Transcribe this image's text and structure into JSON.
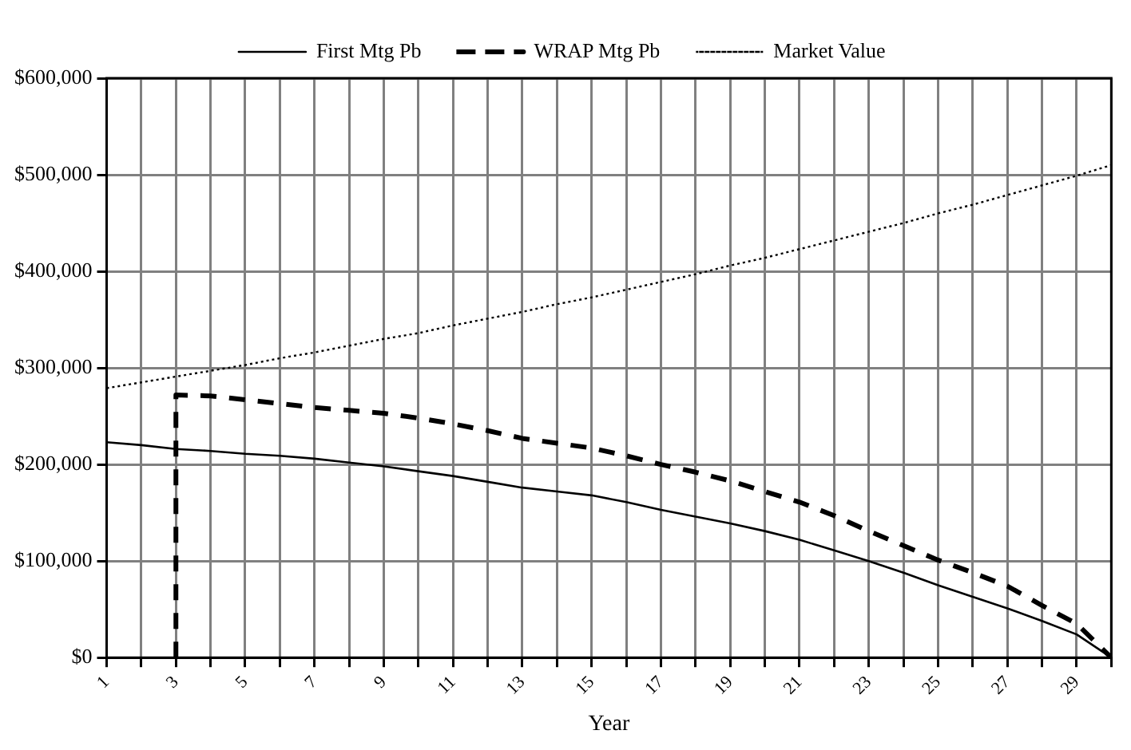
{
  "chart_data": {
    "type": "line",
    "xlabel": "Year",
    "legend": "top",
    "grid": true,
    "marker": "none",
    "xlim": [
      1,
      30
    ],
    "xticks": [
      1,
      {
        "value": 2,
        "label": null
      },
      3,
      {
        "value": 4,
        "label": null
      },
      5,
      {
        "value": 6,
        "label": null
      },
      7,
      {
        "value": 8,
        "label": null
      },
      9,
      {
        "value": 10,
        "label": null
      },
      11,
      {
        "value": 12,
        "label": null
      },
      13,
      {
        "value": 14,
        "label": null
      },
      15,
      {
        "value": 16,
        "label": null
      },
      17,
      {
        "value": 18,
        "label": null
      },
      19,
      {
        "value": 20,
        "label": null
      },
      21,
      {
        "value": 22,
        "label": null
      },
      23,
      {
        "value": 24,
        "label": null
      },
      25,
      {
        "value": 26,
        "label": null
      },
      27,
      {
        "value": 28,
        "label": null
      },
      29,
      {
        "value": 30,
        "label": null
      }
    ],
    "ylim": [
      0,
      600000
    ],
    "yticks": [
      {
        "value": 0,
        "label": "$0"
      },
      {
        "value": 100000,
        "label": "$100,000"
      },
      {
        "value": 200000,
        "label": "$200,000"
      },
      {
        "value": 300000,
        "label": "$300,000"
      },
      {
        "value": 400000,
        "label": "$400,000"
      },
      {
        "value": 500000,
        "label": "$500,000"
      },
      {
        "value": 600000,
        "label": "$600,000"
      }
    ],
    "series": [
      {
        "name": "First Mtg Pb",
        "color": "#000000",
        "line_style": "solid",
        "x": [
          1,
          2,
          3,
          4,
          5,
          6,
          7,
          8,
          9,
          10,
          11,
          12,
          13,
          14,
          15,
          16,
          17,
          18,
          19,
          20,
          21,
          22,
          23,
          24,
          25,
          26,
          27,
          28,
          29,
          30
        ],
        "values": [
          223000,
          220000,
          216000,
          214000,
          211000,
          209000,
          206000,
          202000,
          198000,
          193000,
          188000,
          182000,
          176000,
          172000,
          168000,
          161000,
          153000,
          146000,
          139000,
          131000,
          122000,
          111000,
          100000,
          88000,
          75000,
          63000,
          51000,
          38000,
          24000,
          0
        ]
      },
      {
        "name": "WRAP Mtg Pb",
        "color": "#000000",
        "line_style": "dashed",
        "x": [
          3,
          3,
          4,
          5,
          6,
          7,
          8,
          9,
          10,
          11,
          12,
          13,
          14,
          15,
          16,
          17,
          18,
          19,
          20,
          21,
          22,
          23,
          24,
          25,
          26,
          27,
          28,
          29,
          30
        ],
        "values": [
          0,
          272000,
          271000,
          267000,
          263000,
          259000,
          256000,
          253000,
          248000,
          242000,
          235000,
          227000,
          222000,
          217000,
          209000,
          200000,
          192000,
          183000,
          172000,
          161000,
          147000,
          131000,
          116000,
          101000,
          88000,
          74000,
          54000,
          35000,
          0
        ]
      },
      {
        "name": "Market Value",
        "color": "#000000",
        "line_style": "dotted",
        "x": [
          1,
          2,
          3,
          4,
          5,
          6,
          7,
          8,
          9,
          10,
          11,
          12,
          13,
          14,
          15,
          16,
          17,
          18,
          19,
          20,
          21,
          22,
          23,
          24,
          25,
          26,
          27,
          28,
          29,
          30
        ],
        "values": [
          279000,
          285000,
          291000,
          297000,
          303000,
          310000,
          316000,
          323000,
          330000,
          336000,
          344000,
          351000,
          358000,
          366000,
          373000,
          381000,
          389000,
          397000,
          406000,
          414000,
          423000,
          432000,
          441000,
          450000,
          460000,
          469000,
          479000,
          489000,
          499000,
          510000
        ]
      }
    ]
  }
}
